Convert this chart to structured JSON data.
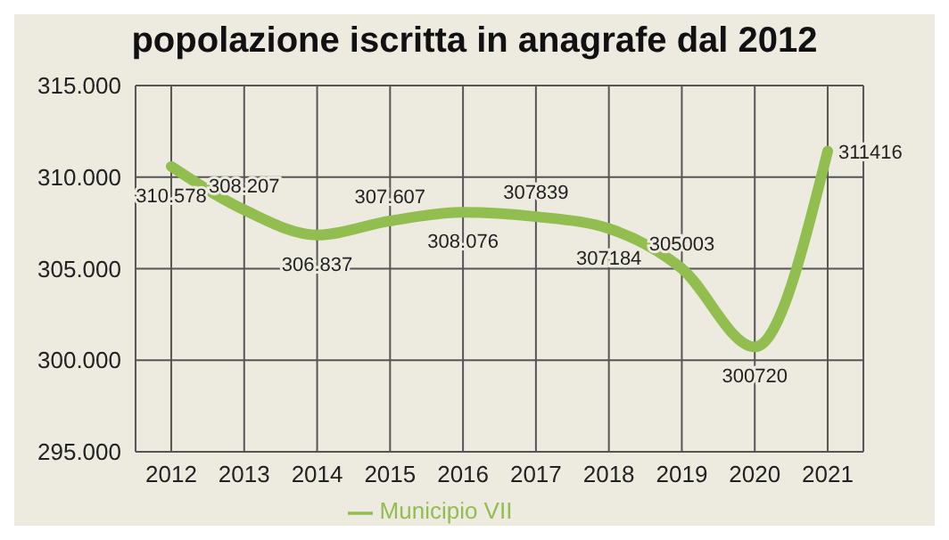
{
  "chart_data": {
    "type": "line",
    "title": "popolazione iscritta in anagrafe dal 2012",
    "categories": [
      "2012",
      "2013",
      "2014",
      "2015",
      "2016",
      "2017",
      "2018",
      "2019",
      "2020",
      "2021"
    ],
    "series": [
      {
        "name": "Municipio VII",
        "color": "#92bd4f",
        "values": [
          310578,
          308207,
          306837,
          307607,
          308076,
          307839,
          307184,
          305003,
          300720,
          311416
        ],
        "value_labels": [
          "310.578",
          "308.207",
          "306.837",
          "307.607",
          "308.076",
          "307839",
          "307184",
          "305003",
          "300720",
          "311416"
        ]
      }
    ],
    "ylim": [
      295000,
      315000
    ],
    "yticks": [
      {
        "value": 295000,
        "label": "295.000"
      },
      {
        "value": 300000,
        "label": "300.000"
      },
      {
        "value": 305000,
        "label": "305.000"
      },
      {
        "value": 310000,
        "label": "310.000"
      },
      {
        "value": 315000,
        "label": "315.000"
      }
    ],
    "grid": true,
    "legend": "bottom",
    "marker": "none",
    "line_style": "solid"
  }
}
